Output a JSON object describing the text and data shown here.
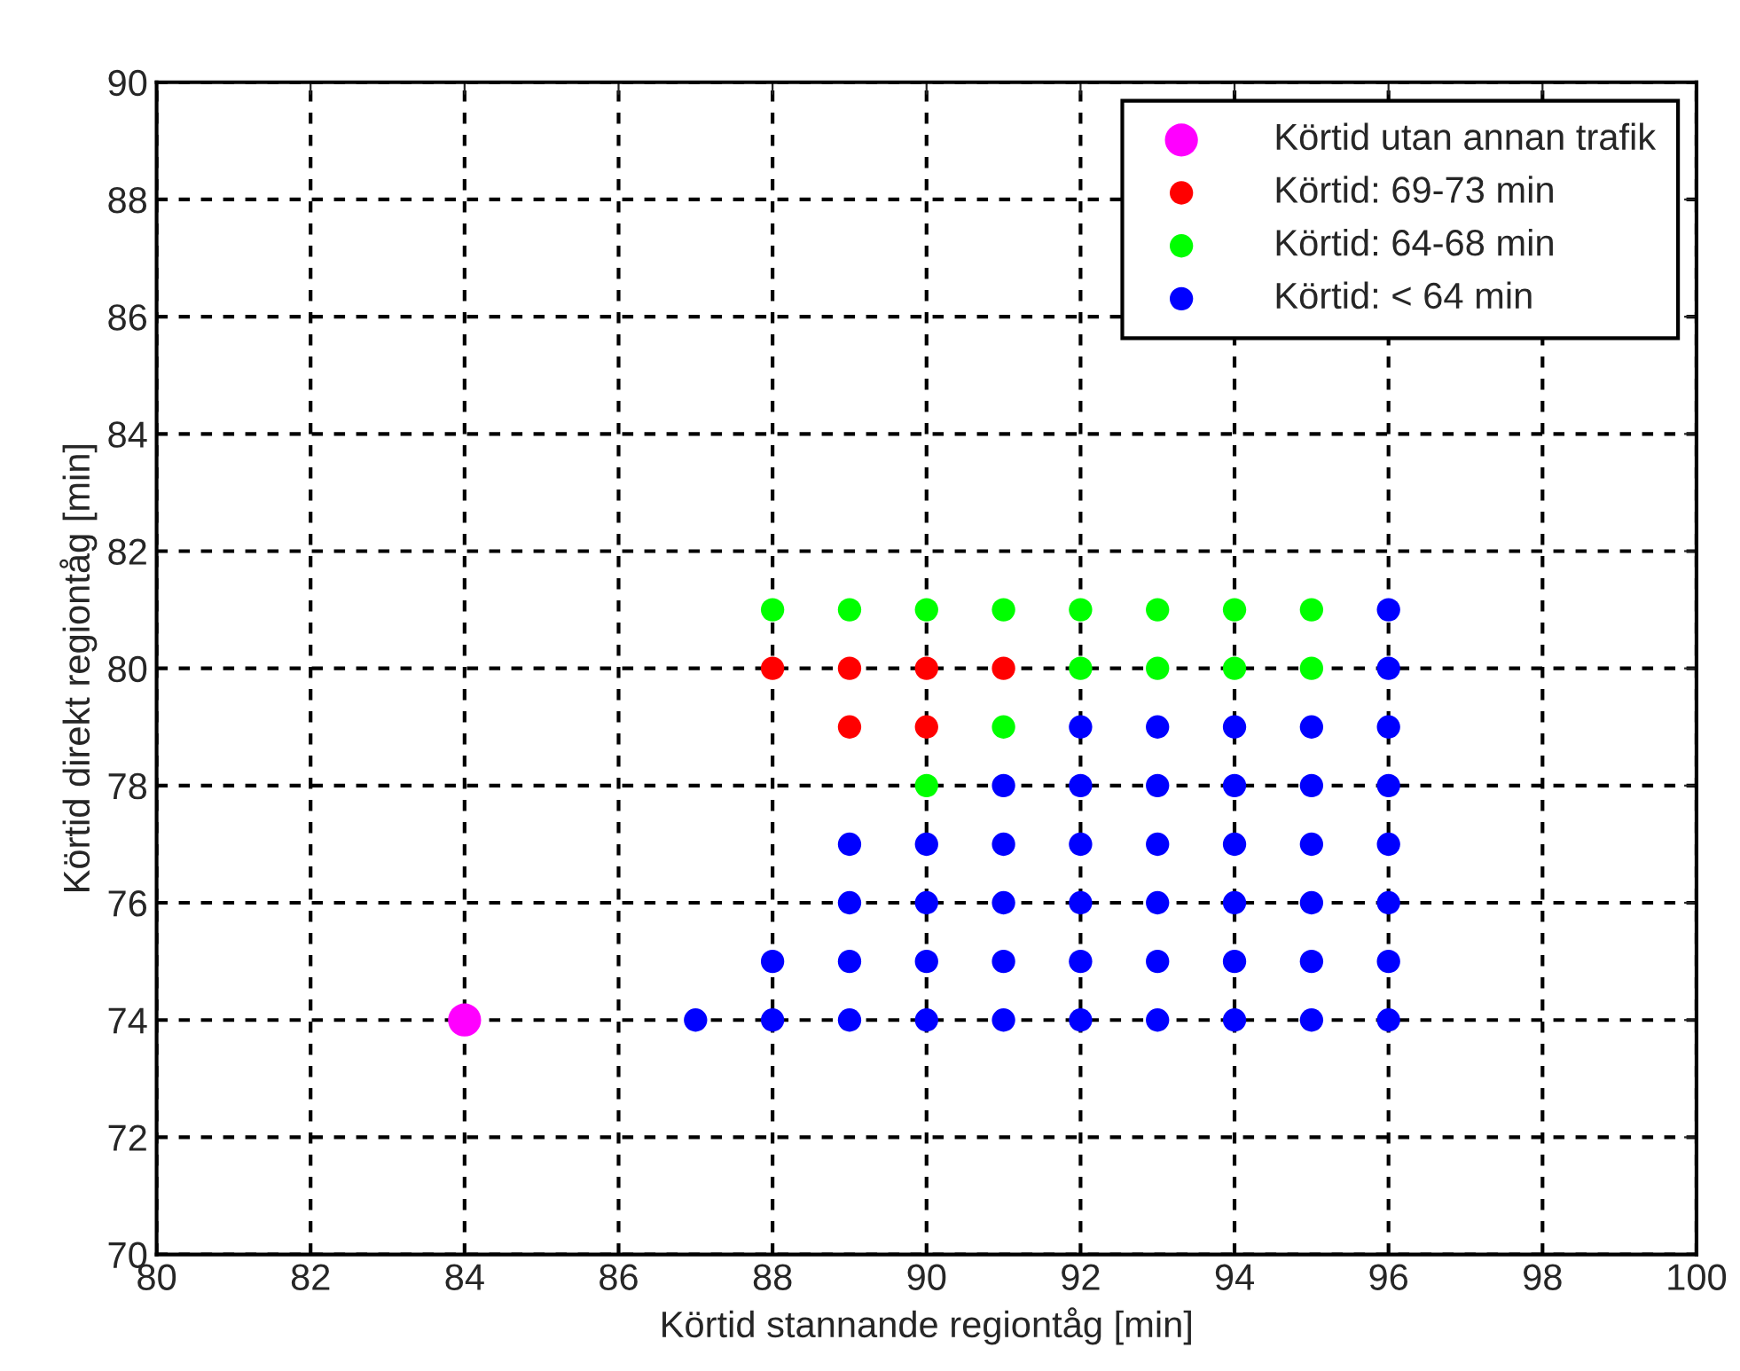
{
  "chart_data": {
    "type": "scatter",
    "xlabel": "Körtid stannande regiontåg [min]",
    "ylabel": "Körtid direkt regiontåg [min]",
    "xlim": [
      80,
      100
    ],
    "xticks": [
      80,
      82,
      84,
      86,
      88,
      90,
      92,
      94,
      96,
      98,
      100
    ],
    "ylim": [
      70,
      90
    ],
    "yticks": [
      70,
      72,
      74,
      76,
      78,
      80,
      82,
      84,
      86,
      88,
      90
    ],
    "grid": true,
    "legend": "top right",
    "marker": "circle",
    "series": [
      {
        "name": "Körtid utan annan trafik",
        "color": "#ff00ff",
        "x": [
          84
        ],
        "values": [
          74
        ]
      },
      {
        "name": "Körtid: 69-73 min",
        "color": "#ff0000",
        "x": [
          88,
          89,
          90,
          91,
          89,
          90
        ],
        "values": [
          80,
          80,
          80,
          80,
          79,
          79
        ]
      },
      {
        "name": "Körtid: 64-68 min",
        "color": "#00ff00",
        "x": [
          88,
          89,
          90,
          91,
          92,
          93,
          94,
          95,
          92,
          93,
          94,
          95,
          91,
          90
        ],
        "values": [
          81,
          81,
          81,
          81,
          81,
          81,
          81,
          81,
          80,
          80,
          80,
          80,
          79,
          78
        ]
      },
      {
        "name": "Körtid: < 64 min",
        "color": "#0000ff",
        "x": [
          96,
          96,
          92,
          93,
          94,
          95,
          96,
          91,
          92,
          93,
          94,
          95,
          96,
          89,
          90,
          91,
          92,
          93,
          94,
          95,
          96,
          89,
          90,
          91,
          92,
          93,
          94,
          95,
          96,
          88,
          89,
          90,
          91,
          92,
          93,
          94,
          95,
          96,
          87,
          88,
          89,
          90,
          91,
          92,
          93,
          94,
          95,
          96
        ],
        "values": [
          81,
          80,
          79,
          79,
          79,
          79,
          79,
          78,
          78,
          78,
          78,
          78,
          78,
          77,
          77,
          77,
          77,
          77,
          77,
          77,
          77,
          76,
          76,
          76,
          76,
          76,
          76,
          76,
          76,
          75,
          75,
          75,
          75,
          75,
          75,
          75,
          75,
          75,
          74,
          74,
          74,
          74,
          74,
          74,
          74,
          74,
          74,
          74
        ]
      }
    ]
  }
}
